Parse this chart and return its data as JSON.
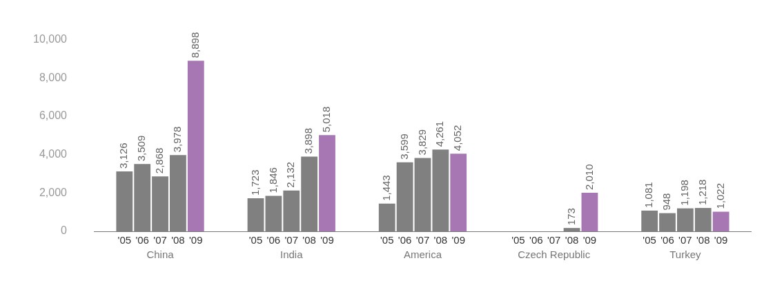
{
  "chart_data": {
    "type": "bar",
    "categories": [
      "China",
      "India",
      "America",
      "Czech Republic",
      "Turkey"
    ],
    "series": [
      {
        "name": "'05",
        "color": "#808080",
        "values": [
          3126,
          1723,
          1443,
          null,
          1081
        ],
        "value_labels": [
          "3,126",
          "1,723",
          "1,443",
          null,
          "1,081"
        ]
      },
      {
        "name": "'06",
        "color": "#808080",
        "values": [
          3509,
          1846,
          3599,
          null,
          948
        ],
        "value_labels": [
          "3,509",
          "1,846",
          "3,599",
          null,
          "948"
        ]
      },
      {
        "name": "'07",
        "color": "#808080",
        "values": [
          2868,
          2132,
          3829,
          null,
          1198
        ],
        "value_labels": [
          "2,868",
          "2,132",
          "3,829",
          null,
          "1,198"
        ]
      },
      {
        "name": "'08",
        "color": "#808080",
        "values": [
          3978,
          3898,
          4261,
          173,
          1218
        ],
        "value_labels": [
          "3,978",
          "3,898",
          "4,261",
          "173",
          "1,218"
        ]
      },
      {
        "name": "'09",
        "color": "#a677b3",
        "values": [
          8898,
          5018,
          4052,
          2010,
          1022
        ],
        "value_labels": [
          "8,898",
          "5,018",
          "4,052",
          "2,010",
          "1,022"
        ]
      }
    ],
    "ylim": [
      0,
      10000
    ],
    "yticks": [
      0,
      {
        "value": 2000,
        "label": "2,000"
      },
      {
        "value": 4000,
        "label": "4,000"
      },
      {
        "value": 6000,
        "label": "6,000"
      },
      {
        "value": 8000,
        "label": "8,000"
      },
      {
        "value": 10000,
        "label": "10,000"
      }
    ],
    "grid": false,
    "legend": false
  }
}
